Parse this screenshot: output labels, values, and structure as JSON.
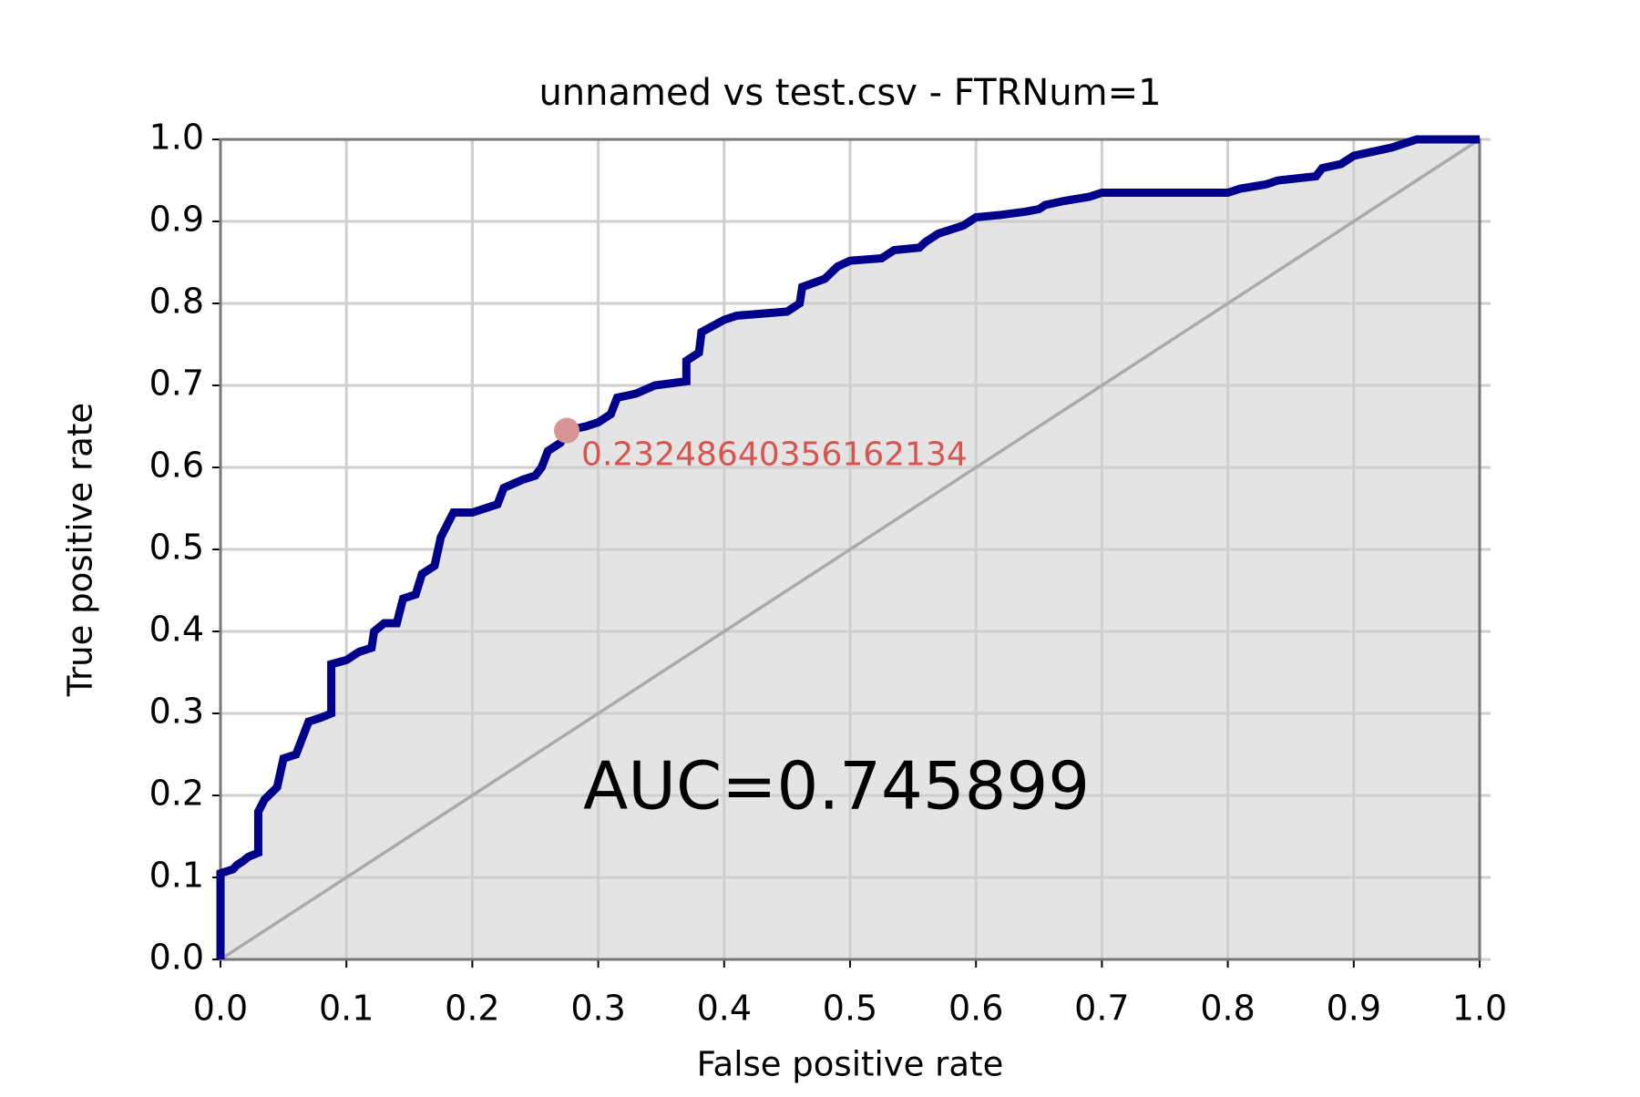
{
  "chart_data": {
    "type": "line",
    "title": "unnamed vs test.csv - FTRNum=1",
    "xlabel": "False positive rate",
    "ylabel": "True positive rate",
    "xlim": [
      0,
      1
    ],
    "ylim": [
      0,
      1
    ],
    "xticks": [
      {
        "value": 0,
        "label": "0.0"
      },
      0.1,
      0.2,
      0.3,
      0.4,
      0.5,
      0.6,
      0.7,
      0.8,
      0.9,
      {
        "value": 1,
        "label": "1.0"
      }
    ],
    "yticks": [
      {
        "value": 0,
        "label": "0.0"
      },
      0.1,
      0.2,
      0.3,
      0.4,
      0.5,
      0.6,
      0.7,
      0.8,
      0.9,
      {
        "value": 1,
        "label": "1.0"
      }
    ],
    "grid": true,
    "fill_under": true,
    "fill_color": "#e4e4e4",
    "diagonal": true,
    "diagonal_color": "#aaaaaa",
    "series": [
      {
        "color": "#00008b",
        "x": [
          0,
          0,
          0.01,
          0.013,
          0.018,
          0.022,
          0.03,
          0.03,
          0.035,
          0.045,
          0.05,
          0.06,
          0.065,
          0.07,
          0.08,
          0.088,
          0.088,
          0.1,
          0.11,
          0.12,
          0.122,
          0.13,
          0.14,
          0.145,
          0.155,
          0.16,
          0.17,
          0.175,
          0.18,
          0.185,
          0.2,
          0.21,
          0.22,
          0.225,
          0.24,
          0.25,
          0.255,
          0.26,
          0.27,
          0.275,
          0.29,
          0.3,
          0.31,
          0.315,
          0.33,
          0.345,
          0.37,
          0.37,
          0.38,
          0.382,
          0.4,
          0.41,
          0.45,
          0.46,
          0.462,
          0.48,
          0.49,
          0.5,
          0.525,
          0.535,
          0.555,
          0.56,
          0.57,
          0.59,
          0.6,
          0.62,
          0.64,
          0.65,
          0.655,
          0.67,
          0.69,
          0.7,
          0.8,
          0.81,
          0.83,
          0.84,
          0.87,
          0.875,
          0.89,
          0.9,
          0.93,
          0.95,
          1
        ],
        "y": [
          0,
          0.105,
          0.11,
          0.115,
          0.12,
          0.125,
          0.13,
          0.18,
          0.195,
          0.21,
          0.245,
          0.25,
          0.27,
          0.29,
          0.295,
          0.3,
          0.36,
          0.365,
          0.375,
          0.38,
          0.4,
          0.41,
          0.41,
          0.44,
          0.445,
          0.47,
          0.48,
          0.515,
          0.53,
          0.545,
          0.545,
          0.55,
          0.555,
          0.575,
          0.585,
          0.59,
          0.6,
          0.62,
          0.63,
          0.645,
          0.65,
          0.655,
          0.665,
          0.685,
          0.69,
          0.7,
          0.705,
          0.73,
          0.74,
          0.765,
          0.78,
          0.785,
          0.79,
          0.8,
          0.82,
          0.83,
          0.845,
          0.852,
          0.855,
          0.865,
          0.868,
          0.875,
          0.885,
          0.895,
          0.905,
          0.908,
          0.912,
          0.915,
          0.92,
          0.925,
          0.93,
          0.935,
          0.935,
          0.94,
          0.945,
          0.95,
          0.955,
          0.965,
          0.97,
          0.98,
          0.99,
          1,
          1
        ]
      }
    ],
    "threshold_point": {
      "x": 0.275,
      "y": 0.645,
      "label": "0.23248640356162134",
      "color": "#d99595",
      "label_color": "#d9534f"
    },
    "annotation": "AUC=0.745899"
  }
}
